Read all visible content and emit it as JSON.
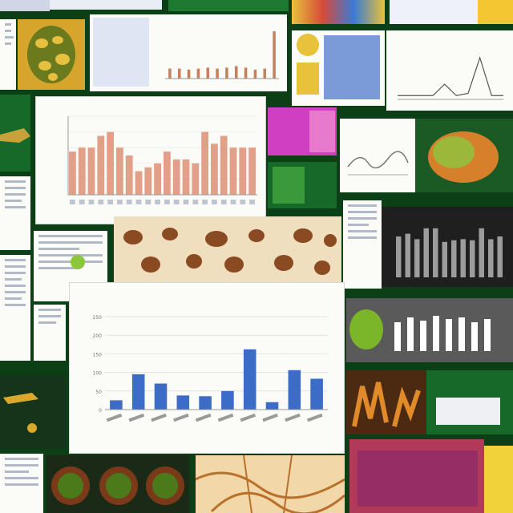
{
  "chart_data": [
    {
      "type": "bar",
      "ylim": [
        0,
        250
      ],
      "values": [
        25,
        95,
        70,
        38,
        36,
        50,
        162,
        20,
        106,
        83
      ],
      "tick_labels": [
        "0",
        "50",
        "100",
        "150",
        "200",
        "250"
      ],
      "colors": {
        "bar": "#3b6cc7"
      }
    },
    {
      "type": "bar",
      "ylim": [
        0,
        100
      ],
      "values": [
        55,
        60,
        60,
        75,
        80,
        60,
        50,
        30,
        35,
        40,
        55,
        45,
        45,
        40,
        80,
        65,
        75,
        60,
        60,
        60
      ],
      "colors": {
        "bar": "#e3a088"
      }
    },
    {
      "type": "bar",
      "ylim": [
        0,
        100
      ],
      "values": [
        75,
        80,
        70,
        90,
        90,
        65,
        68,
        70,
        68,
        90,
        70,
        75
      ],
      "colors": {
        "bar": "#9c9c9c"
      }
    },
    {
      "type": "bar",
      "ylim": [
        0,
        100
      ],
      "values": [
        20,
        20,
        18,
        20,
        22,
        20,
        22,
        25,
        22,
        18,
        20,
        95
      ],
      "colors": {
        "bar": "#c8805a"
      }
    },
    {
      "type": "line",
      "values": [
        5,
        5,
        5,
        5,
        20,
        5,
        8,
        55,
        5,
        5
      ],
      "colors": {
        "line": "#555555"
      }
    }
  ]
}
